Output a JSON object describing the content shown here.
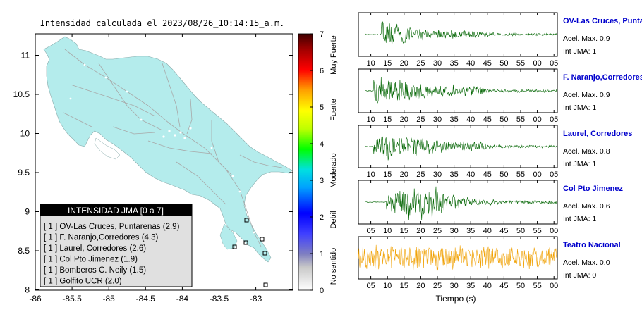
{
  "map": {
    "title": "Intensidad calculada el 2023/08/26_10:14:15_a.m.",
    "x_ticks": [
      "-86",
      "-85.5",
      "-85",
      "-84.5",
      "-84",
      "-83.5",
      "-83"
    ],
    "y_ticks": [
      "11",
      "10.5",
      "10",
      "9.5",
      "9",
      "8.5",
      "8"
    ],
    "land_color": "#b4ecec",
    "legend": {
      "title": "INTENSIDAD JMA [0 a 7]",
      "items": [
        "[ 1 ]  OV-Las Cruces, Puntarenas (2.9)",
        "[ 1 ]  F. Naranjo,Corredores (4.3)",
        "[ 1 ]  Laurel, Corredores (2.6)",
        "[ 1 ]  Col Pto Jimenez (1.9)",
        "[ 1 ]  Bomberos C. Neily (1.5)",
        "[ 1 ]  Golfito UCR (2.0)"
      ]
    }
  },
  "colorbar": {
    "ticks": [
      "7",
      "6",
      "5",
      "4",
      "3",
      "2",
      "1",
      "0"
    ],
    "categories": [
      "Muy Fuerte",
      "Fuerte",
      "Moderado",
      "Debil",
      "No sentido"
    ]
  },
  "chart_data": [
    {
      "type": "line",
      "name": "OV-Las Cruces, Puntarenas",
      "station_label": "OV-Las Cruces, Puntar",
      "accel_label": "Acel. Max. 0.9",
      "jma_label": "Int JMA: 1",
      "color": "#006400",
      "x_ticks": [
        "10",
        "15",
        "20",
        "25",
        "30",
        "35",
        "40",
        "45",
        "50",
        "55",
        "00",
        "05"
      ],
      "start_s": 13,
      "onset_s": 19,
      "peak_amp": 0.9
    },
    {
      "type": "line",
      "name": "F. Naranjo,Corredores",
      "station_label": "F. Naranjo,Corredores",
      "accel_label": "Acel. Max. 0.9",
      "jma_label": "Int JMA: 1",
      "color": "#006400",
      "x_ticks": [
        "10",
        "15",
        "20",
        "25",
        "30",
        "35",
        "40",
        "45",
        "50",
        "55",
        "00",
        "05"
      ],
      "start_s": 13,
      "onset_s": 16,
      "peak_amp": 0.9
    },
    {
      "type": "line",
      "name": "Laurel, Corredores",
      "station_label": "Laurel, Corredores",
      "accel_label": "Acel. Max. 0.8",
      "jma_label": "Int JMA: 1",
      "color": "#006400",
      "x_ticks": [
        "10",
        "15",
        "20",
        "25",
        "30",
        "35",
        "40",
        "45",
        "50",
        "55",
        "00",
        "05"
      ],
      "start_s": 13,
      "onset_s": 16,
      "peak_amp": 0.8
    },
    {
      "type": "line",
      "name": "Col Pto Jimenez",
      "station_label": "Col Pto Jimenez",
      "accel_label": "Acel. Max. 0.6",
      "jma_label": "Int JMA: 1",
      "color": "#006400",
      "x_ticks": [
        "05",
        "10",
        "15",
        "20",
        "25",
        "30",
        "35",
        "40",
        "45",
        "50",
        "55",
        "00"
      ],
      "start_s": 8,
      "onset_s": 16,
      "peak_amp": 0.6
    },
    {
      "type": "line",
      "name": "Teatro Nacional",
      "station_label": "Teatro Nacional",
      "accel_label": "Acel. Max. 0.0",
      "jma_label": "Int JMA: 0",
      "color": "#f0a000",
      "x_ticks": [
        "05",
        "10",
        "15",
        "20",
        "25",
        "30",
        "35",
        "40",
        "45",
        "50",
        "55",
        "00"
      ],
      "start_s": 3,
      "onset_s": 3,
      "peak_amp": 0.0
    }
  ],
  "xlabel": "Tiempo (s)"
}
